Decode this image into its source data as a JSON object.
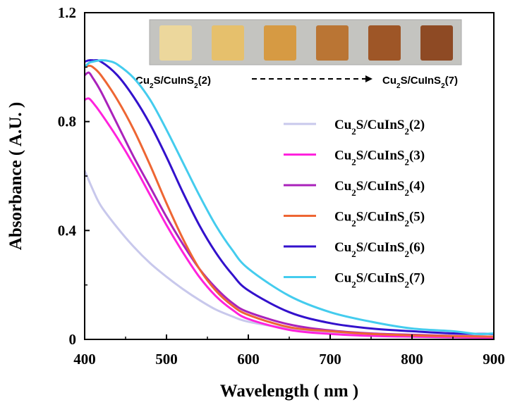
{
  "chart_data": {
    "type": "line",
    "title": "",
    "xlabel": "Wavelength ( nm )",
    "ylabel": "Absorbance ( A.U. )",
    "xlim": [
      400,
      900
    ],
    "ylim": [
      0,
      1.2
    ],
    "xticks": [
      400,
      500,
      600,
      700,
      800,
      900
    ],
    "yticks": [
      0,
      0.4,
      0.8,
      1.2
    ],
    "ytick_labels": [
      "0",
      "0.4",
      "0.8",
      "1.2"
    ],
    "legend_position": "right",
    "series": [
      {
        "name_base": "Cu",
        "name_sub1": "2",
        "name_mid": "S/CuInS",
        "name_sub2": "2",
        "name_tail": "(2)",
        "color": "#c8c8ec",
        "x": [
          400,
          410,
          420,
          440,
          460,
          480,
          500,
          520,
          540,
          560,
          580,
          600,
          650,
          700,
          750,
          800,
          850,
          900
        ],
        "y": [
          0.62,
          0.55,
          0.49,
          0.41,
          0.34,
          0.28,
          0.23,
          0.185,
          0.145,
          0.11,
          0.085,
          0.065,
          0.04,
          0.025,
          0.016,
          0.01,
          0.007,
          0.005
        ]
      },
      {
        "name_base": "Cu",
        "name_sub1": "2",
        "name_mid": "S/CuInS",
        "name_sub2": "2",
        "name_tail": "(3)",
        "color": "#ff22dd",
        "x": [
          400,
          405,
          410,
          420,
          440,
          460,
          480,
          500,
          520,
          540,
          560,
          580,
          600,
          650,
          700,
          750,
          800,
          850,
          900
        ],
        "y": [
          0.88,
          0.885,
          0.87,
          0.83,
          0.74,
          0.64,
          0.53,
          0.42,
          0.32,
          0.23,
          0.16,
          0.11,
          0.075,
          0.035,
          0.02,
          0.013,
          0.01,
          0.008,
          0.006
        ]
      },
      {
        "name_base": "Cu",
        "name_sub1": "2",
        "name_mid": "S/CuInS",
        "name_sub2": "2",
        "name_tail": "(4)",
        "color": "#aa22bb",
        "x": [
          400,
          405,
          410,
          420,
          440,
          460,
          480,
          500,
          520,
          540,
          560,
          580,
          600,
          650,
          700,
          750,
          800,
          850,
          900
        ],
        "y": [
          0.97,
          0.98,
          0.96,
          0.91,
          0.79,
          0.67,
          0.56,
          0.45,
          0.35,
          0.26,
          0.19,
          0.135,
          0.1,
          0.055,
          0.033,
          0.022,
          0.017,
          0.013,
          0.01
        ]
      },
      {
        "name_base": "Cu",
        "name_sub1": "2",
        "name_mid": "S/CuInS",
        "name_sub2": "2",
        "name_tail": "(5)",
        "color": "#ee6633",
        "x": [
          400,
          405,
          410,
          420,
          440,
          460,
          480,
          500,
          520,
          540,
          560,
          580,
          600,
          650,
          700,
          750,
          800,
          850,
          900
        ],
        "y": [
          1.0,
          1.005,
          1.0,
          0.97,
          0.88,
          0.77,
          0.64,
          0.5,
          0.37,
          0.26,
          0.18,
          0.125,
          0.09,
          0.045,
          0.03,
          0.02,
          0.015,
          0.012,
          0.01
        ]
      },
      {
        "name_base": "Cu",
        "name_sub1": "2",
        "name_mid": "S/CuInS",
        "name_sub2": "2",
        "name_tail": "(6)",
        "color": "#3311cc",
        "x": [
          400,
          405,
          410,
          420,
          440,
          460,
          480,
          500,
          520,
          540,
          560,
          580,
          600,
          650,
          700,
          750,
          800,
          850,
          900
        ],
        "y": [
          1.02,
          1.025,
          1.025,
          1.02,
          0.97,
          0.89,
          0.79,
          0.67,
          0.54,
          0.42,
          0.32,
          0.24,
          0.18,
          0.1,
          0.06,
          0.04,
          0.03,
          0.022,
          0.02
        ]
      },
      {
        "name_base": "Cu",
        "name_sub1": "2",
        "name_mid": "S/CuInS",
        "name_sub2": "2",
        "name_tail": "(7)",
        "color": "#44ccee",
        "x": [
          400,
          405,
          410,
          420,
          430,
          440,
          460,
          480,
          500,
          520,
          540,
          560,
          580,
          600,
          650,
          700,
          750,
          800,
          850,
          880,
          900
        ],
        "y": [
          1.0,
          1.015,
          1.02,
          1.025,
          1.022,
          1.01,
          0.96,
          0.88,
          0.77,
          0.65,
          0.53,
          0.42,
          0.33,
          0.26,
          0.16,
          0.1,
          0.065,
          0.04,
          0.03,
          0.02,
          0.022
        ]
      }
    ],
    "inset": {
      "swatch_colors": [
        "#ecd79c",
        "#e6c06c",
        "#d69a43",
        "#ba7534",
        "#9e5627",
        "#8e4a24"
      ],
      "from_label": {
        "base": "Cu",
        "sub1": "2",
        "mid": "S/CuInS",
        "sub2": "2",
        "tail": "(2)"
      },
      "to_label": {
        "base": "Cu",
        "sub1": "2",
        "mid": "S/CuInS",
        "sub2": "2",
        "tail": "(7)"
      }
    }
  }
}
